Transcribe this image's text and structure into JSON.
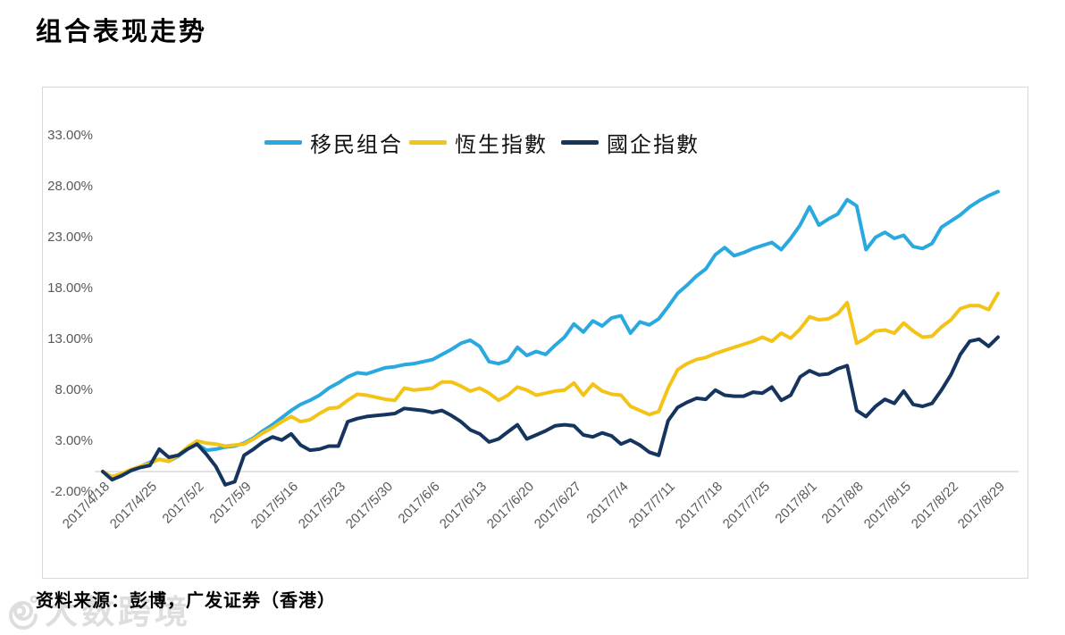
{
  "page": {
    "title": "组合表现走势",
    "source_note": "资料来源：彭博，广发证券（香港）",
    "watermark": "大数跨境"
  },
  "colors": {
    "series_portfolio": "#29a9df",
    "series_hsi": "#f3c317",
    "series_hscei": "#16355e",
    "axis_text": "#595959",
    "zero_axis_line": "#d9d9d9",
    "chart_border": "#d9d9d9",
    "watermark": "#dedede"
  },
  "chart_data": {
    "type": "line",
    "title": "组合表现走势",
    "xlabel": "",
    "ylabel": "",
    "grid": "zero-baseline only, no other gridlines",
    "legend_position": "top-center-inside",
    "ylim": [
      -2,
      33
    ],
    "y_ticks": [
      "33.00%",
      "28.00%",
      "23.00%",
      "18.00%",
      "13.00%",
      "8.00%",
      "3.00%",
      "-2.00%"
    ],
    "x_tick_labels": [
      "2017/4/18",
      "2017/4/25",
      "2017/5/2",
      "2017/5/9",
      "2017/5/16",
      "2017/5/23",
      "2017/5/30",
      "2017/6/6",
      "2017/6/13",
      "2017/6/20",
      "2017/6/27",
      "2017/7/4",
      "2017/7/11",
      "2017/7/18",
      "2017/7/25",
      "2017/8/1",
      "2017/8/8",
      "2017/8/15",
      "2017/8/22",
      "2017/8/29"
    ],
    "x_note": "daily points (5 trading days per labeled week), values in % cumulative return",
    "series": [
      {
        "name": "移民组合",
        "color": "#29a9df",
        "values": [
          0,
          -0.7,
          -0.4,
          0.1,
          0.5,
          0.9,
          1.2,
          1,
          1.5,
          2.2,
          2.7,
          2.1,
          2.2,
          2.4,
          2.5,
          2.8,
          3.3,
          4,
          4.6,
          5.3,
          6,
          6.6,
          7,
          7.5,
          8.2,
          8.7,
          9.3,
          9.7,
          9.6,
          9.9,
          10.2,
          10.3,
          10.5,
          10.6,
          10.8,
          11,
          11.5,
          12,
          12.6,
          12.9,
          12.3,
          10.8,
          10.6,
          10.9,
          12.2,
          11.4,
          11.8,
          11.5,
          12.4,
          13.2,
          14.5,
          13.7,
          14.8,
          14.3,
          15.1,
          15.3,
          13.6,
          14.7,
          14.4,
          15,
          16.2,
          17.5,
          18.3,
          19.2,
          19.9,
          21.3,
          22,
          21.2,
          21.5,
          21.9,
          22.2,
          22.5,
          21.8,
          22.9,
          24.2,
          26,
          24.2,
          24.8,
          25.3,
          26.7,
          26.1,
          21.8,
          23,
          23.5,
          22.9,
          23.2,
          22.1,
          21.9,
          22.4,
          24,
          24.6,
          25.2,
          26,
          26.6,
          27.1,
          27.5
        ]
      },
      {
        "name": "恆生指數",
        "color": "#f3c317",
        "values": [
          0,
          -0.5,
          -0.2,
          0.2,
          0.5,
          0.8,
          1.2,
          1,
          1.6,
          2.4,
          3,
          2.8,
          2.7,
          2.5,
          2.6,
          2.7,
          3.2,
          3.8,
          4.3,
          4.9,
          5.4,
          4.9,
          5.1,
          5.7,
          6.2,
          6.3,
          7,
          7.6,
          7.5,
          7.3,
          7.1,
          7,
          8.2,
          8,
          8.1,
          8.2,
          8.8,
          8.8,
          8.4,
          7.9,
          8.2,
          7.7,
          7,
          7.5,
          8.3,
          8,
          7.5,
          7.7,
          7.9,
          8,
          8.7,
          7.5,
          8.6,
          7.9,
          7.6,
          7.5,
          6.4,
          6,
          5.6,
          5.9,
          8.2,
          10,
          10.6,
          11,
          11.2,
          11.6,
          11.9,
          12.2,
          12.5,
          12.8,
          13.2,
          12.8,
          13.6,
          13.1,
          14,
          15.2,
          14.9,
          15,
          15.5,
          16.6,
          12.6,
          13.1,
          13.8,
          13.9,
          13.6,
          14.6,
          13.8,
          13.2,
          13.3,
          14.2,
          14.9,
          16,
          16.3,
          16.3,
          15.9,
          17.5
        ]
      },
      {
        "name": "國企指數",
        "color": "#16355e",
        "values": [
          0,
          -0.8,
          -0.4,
          0.1,
          0.4,
          0.6,
          2.2,
          1.4,
          1.6,
          2.2,
          2.7,
          1.7,
          0.5,
          -1.3,
          -1,
          1.6,
          2.2,
          2.9,
          3.4,
          3.1,
          3.7,
          2.6,
          2.1,
          2.2,
          2.5,
          2.5,
          4.9,
          5.2,
          5.4,
          5.5,
          5.6,
          5.7,
          6.2,
          6.1,
          6,
          5.8,
          6,
          5.5,
          4.9,
          4.1,
          3.7,
          2.9,
          3.2,
          3.9,
          4.6,
          3.2,
          3.6,
          4,
          4.5,
          4.6,
          4.5,
          3.6,
          3.4,
          3.8,
          3.5,
          2.7,
          3.1,
          2.6,
          1.9,
          1.6,
          5,
          6.3,
          6.8,
          7.2,
          7.1,
          8,
          7.5,
          7.4,
          7.4,
          7.8,
          7.7,
          8.3,
          7,
          7.5,
          9.3,
          9.9,
          9.5,
          9.6,
          10.1,
          10.4,
          6,
          5.4,
          6.4,
          7.1,
          6.7,
          7.9,
          6.6,
          6.4,
          6.7,
          8,
          9.5,
          11.5,
          12.8,
          13,
          12.3,
          13.2
        ]
      }
    ]
  }
}
